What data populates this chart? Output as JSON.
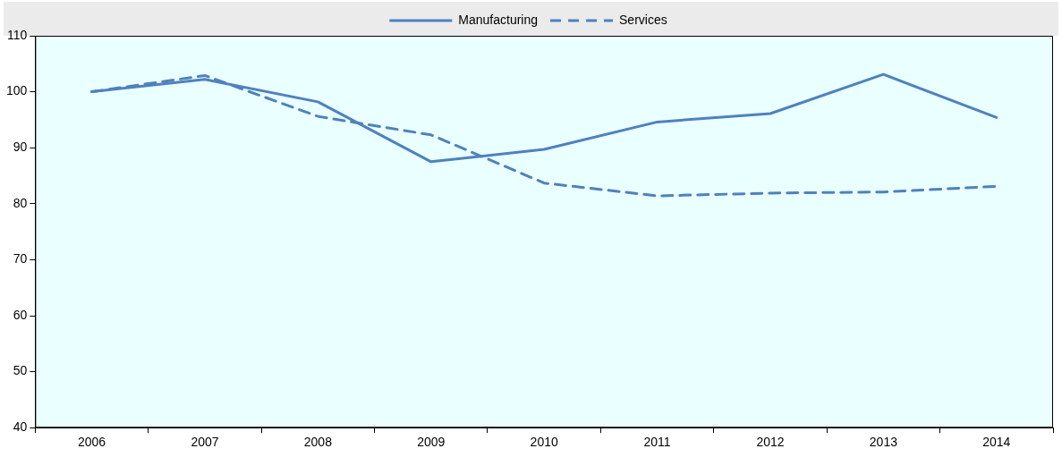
{
  "chart_data": {
    "type": "line",
    "categories": [
      "2006",
      "2007",
      "2008",
      "2009",
      "2010",
      "2011",
      "2012",
      "2013",
      "2014"
    ],
    "series": [
      {
        "name": "Manufacturing",
        "color": "#4f81bd",
        "line_style": "solid",
        "values": [
          100,
          102.2,
          98.2,
          87.5,
          89.7,
          94.6,
          96.1,
          103.1,
          95.4
        ]
      },
      {
        "name": "Services",
        "color": "#4f81bd",
        "line_style": "dashed",
        "values": [
          100,
          102.9,
          95.6,
          92.3,
          83.7,
          81.4,
          81.9,
          82.1,
          83.1
        ]
      }
    ],
    "ylim": [
      40,
      110
    ],
    "yticks": [
      40,
      50,
      60,
      70,
      80,
      90,
      100,
      110
    ],
    "grid": false,
    "legend": "top",
    "marker": "none"
  }
}
